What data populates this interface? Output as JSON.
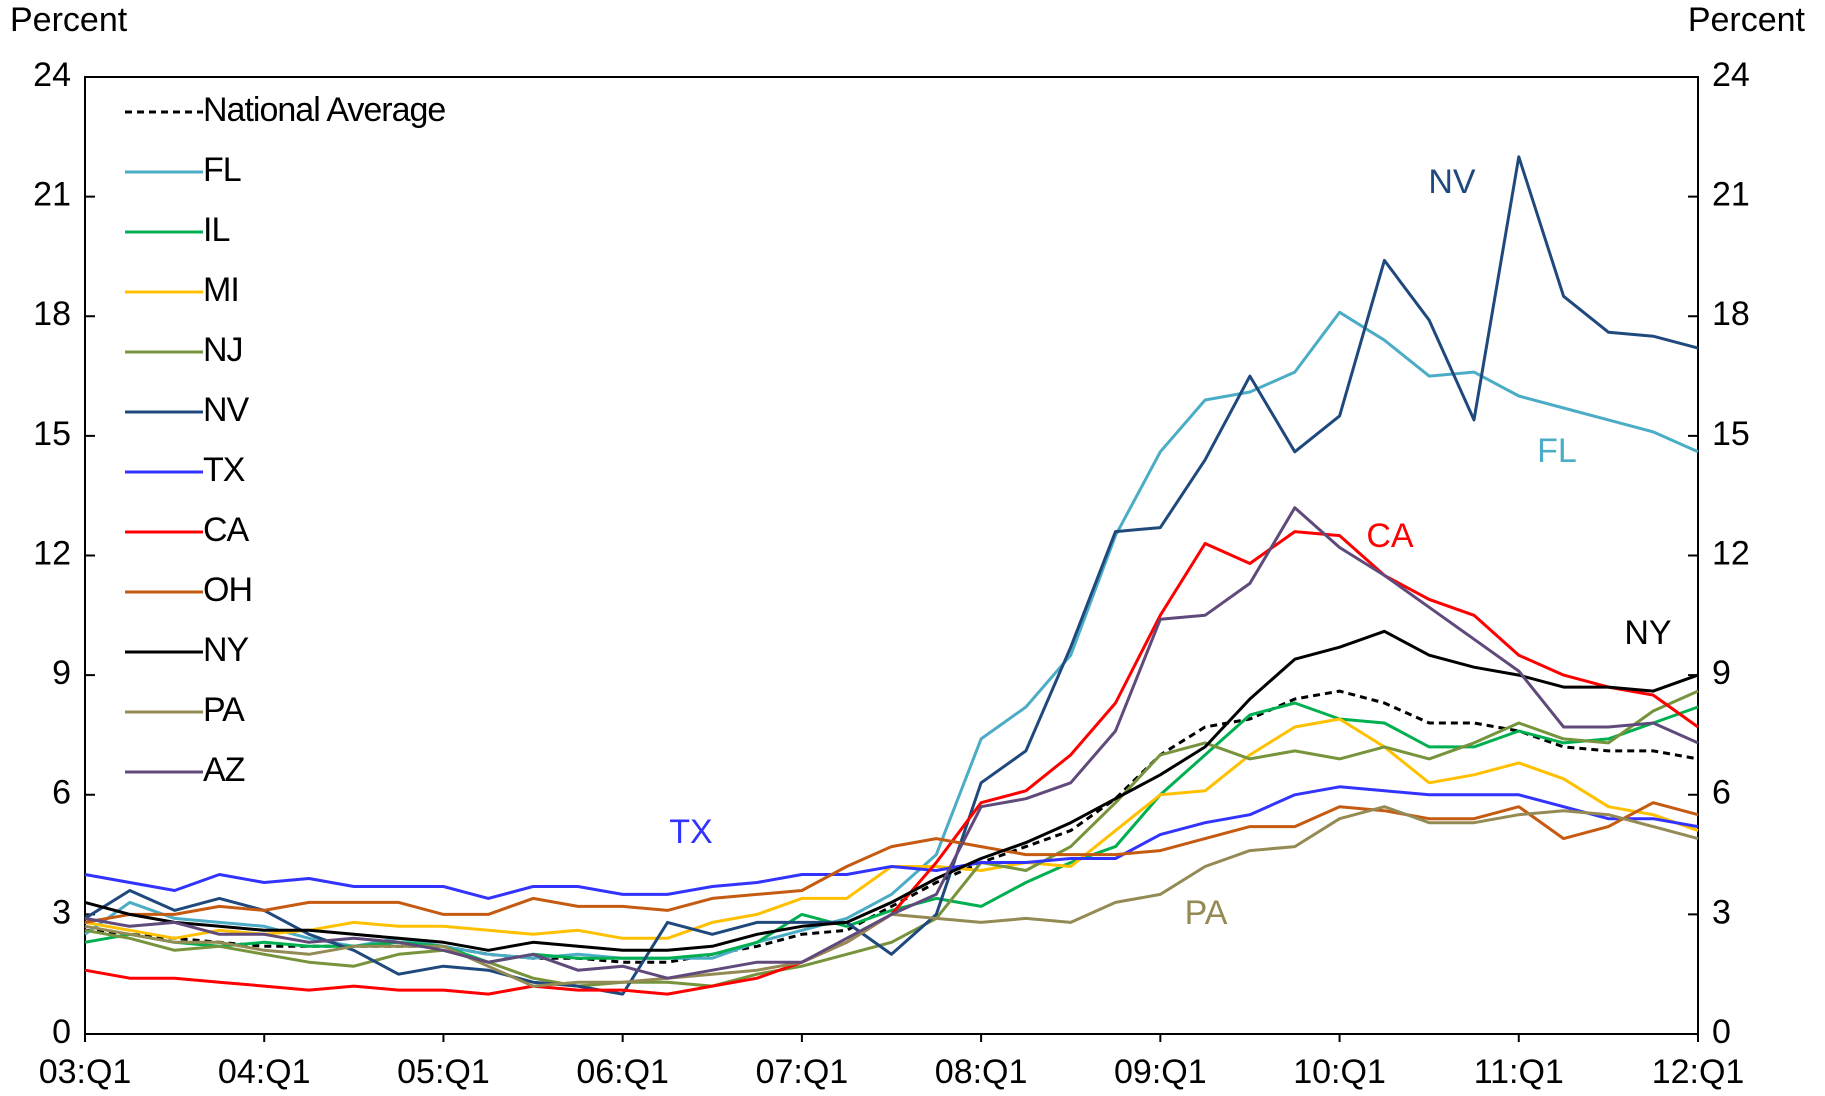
{
  "chart_data": {
    "type": "line",
    "y_label": "Percent",
    "y2_label": "Percent",
    "categories": [
      "03:Q1",
      null,
      null,
      null,
      "04:Q1",
      null,
      null,
      null,
      "05:Q1",
      null,
      null,
      null,
      "06:Q1",
      null,
      null,
      null,
      "07:Q1",
      null,
      null,
      null,
      "08:Q1",
      null,
      null,
      null,
      "09:Q1",
      null,
      null,
      null,
      "10:Q1",
      null,
      null,
      null,
      "11:Q1",
      null,
      null,
      null,
      "12:Q1"
    ],
    "ylim": [
      0,
      24
    ],
    "yticks": [
      0,
      3,
      6,
      9,
      12,
      15,
      18,
      21,
      24
    ],
    "y2lim": [
      0,
      24
    ],
    "y2ticks": [
      0,
      3,
      6,
      9,
      12,
      15,
      18,
      21,
      24
    ],
    "legend": "upper left",
    "series": [
      {
        "name": "National Average",
        "color": "#000000",
        "dashed": true,
        "values": [
          2.6,
          2.5,
          2.4,
          2.3,
          2.2,
          2.2,
          2.2,
          2.2,
          2.2,
          2.0,
          1.9,
          1.9,
          1.8,
          1.8,
          2.0,
          2.2,
          2.5,
          2.6,
          3.2,
          3.8,
          4.3,
          4.7,
          5.1,
          5.9,
          7.0,
          7.7,
          7.9,
          8.4,
          8.6,
          8.3,
          7.8,
          7.8,
          7.6,
          7.2,
          7.1,
          7.1,
          6.9
        ]
      },
      {
        "name": "FL",
        "color": "#4bacc6",
        "values": [
          2.5,
          3.3,
          2.9,
          2.8,
          2.7,
          2.4,
          2.2,
          2.4,
          2.2,
          2.0,
          1.9,
          2.0,
          1.9,
          1.9,
          1.9,
          2.3,
          2.6,
          2.9,
          3.5,
          4.5,
          7.4,
          8.2,
          9.5,
          12.5,
          14.6,
          15.9,
          16.1,
          16.6,
          18.1,
          17.4,
          16.5,
          16.6,
          16.0,
          15.7,
          15.4,
          15.1,
          14.6
        ]
      },
      {
        "name": "IL",
        "color": "#00b050",
        "values": [
          2.3,
          2.5,
          2.3,
          2.2,
          2.3,
          2.2,
          2.2,
          2.3,
          2.2,
          1.8,
          2.0,
          1.9,
          1.9,
          1.9,
          2.0,
          2.3,
          3.0,
          2.7,
          3.1,
          3.4,
          3.2,
          3.8,
          4.3,
          4.7,
          6.0,
          7.0,
          8.0,
          8.3,
          7.9,
          7.8,
          7.2,
          7.2,
          7.6,
          7.3,
          7.4,
          7.8,
          8.2
        ]
      },
      {
        "name": "MI",
        "color": "#ffc000",
        "values": [
          2.8,
          2.6,
          2.4,
          2.6,
          2.5,
          2.6,
          2.8,
          2.7,
          2.7,
          2.6,
          2.5,
          2.6,
          2.4,
          2.4,
          2.8,
          3.0,
          3.4,
          3.4,
          4.2,
          4.2,
          4.1,
          4.3,
          4.2,
          5.1,
          6.0,
          6.1,
          7.0,
          7.7,
          7.9,
          7.2,
          6.3,
          6.5,
          6.8,
          6.4,
          5.7,
          5.5,
          5.1
        ]
      },
      {
        "name": "NJ",
        "color": "#77933c",
        "values": [
          2.6,
          2.4,
          2.1,
          2.2,
          2.0,
          1.8,
          1.7,
          2.0,
          2.1,
          1.8,
          1.4,
          1.2,
          1.3,
          1.3,
          1.2,
          1.5,
          1.7,
          2.0,
          2.3,
          2.9,
          4.3,
          4.1,
          4.7,
          5.8,
          7.0,
          7.3,
          6.9,
          7.1,
          6.9,
          7.2,
          6.9,
          7.3,
          7.8,
          7.4,
          7.3,
          8.1,
          8.6
        ]
      },
      {
        "name": "NV",
        "color": "#1f497d",
        "values": [
          2.9,
          3.6,
          3.1,
          3.4,
          3.1,
          2.5,
          2.1,
          1.5,
          1.7,
          1.6,
          1.3,
          1.2,
          1.0,
          2.8,
          2.5,
          2.8,
          2.8,
          2.8,
          2.0,
          3.0,
          6.3,
          7.1,
          9.7,
          12.6,
          12.7,
          14.4,
          16.5,
          14.6,
          15.5,
          19.4,
          17.9,
          15.4,
          22.0,
          18.5,
          17.6,
          17.5,
          17.2
        ]
      },
      {
        "name": "TX",
        "color": "#3333ff",
        "values": [
          4.0,
          3.8,
          3.6,
          4.0,
          3.8,
          3.9,
          3.7,
          3.7,
          3.7,
          3.4,
          3.7,
          3.7,
          3.5,
          3.5,
          3.7,
          3.8,
          4.0,
          4.0,
          4.2,
          4.1,
          4.3,
          4.3,
          4.4,
          4.4,
          5.0,
          5.3,
          5.5,
          6.0,
          6.2,
          6.1,
          6.0,
          6.0,
          6.0,
          5.7,
          5.4,
          5.4,
          5.2
        ]
      },
      {
        "name": "CA",
        "color": "#ff0000",
        "values": [
          1.6,
          1.4,
          1.4,
          1.3,
          1.2,
          1.1,
          1.2,
          1.1,
          1.1,
          1.0,
          1.2,
          1.1,
          1.1,
          1.0,
          1.2,
          1.4,
          1.8,
          2.3,
          3.0,
          4.3,
          5.8,
          6.1,
          7.0,
          8.3,
          10.5,
          12.3,
          11.8,
          12.6,
          12.5,
          11.5,
          10.9,
          10.5,
          9.5,
          9.0,
          8.7,
          8.5,
          7.7
        ]
      },
      {
        "name": "OH",
        "color": "#c55a11",
        "values": [
          2.8,
          3.0,
          3.0,
          3.2,
          3.1,
          3.3,
          3.3,
          3.3,
          3.0,
          3.0,
          3.4,
          3.2,
          3.2,
          3.1,
          3.4,
          3.5,
          3.6,
          4.2,
          4.7,
          4.9,
          4.7,
          4.5,
          4.5,
          4.5,
          4.6,
          4.9,
          5.2,
          5.2,
          5.7,
          5.6,
          5.4,
          5.4,
          5.7,
          4.9,
          5.2,
          5.8,
          5.5
        ]
      },
      {
        "name": "NY",
        "color": "#000000",
        "values": [
          3.3,
          3.0,
          2.8,
          2.7,
          2.6,
          2.6,
          2.5,
          2.4,
          2.3,
          2.1,
          2.3,
          2.2,
          2.1,
          2.1,
          2.2,
          2.5,
          2.7,
          2.8,
          3.3,
          3.9,
          4.4,
          4.8,
          5.3,
          5.9,
          6.5,
          7.2,
          8.4,
          9.4,
          9.7,
          10.1,
          9.5,
          9.2,
          9.0,
          8.7,
          8.7,
          8.6,
          9.0
        ]
      },
      {
        "name": "PA",
        "color": "#948a54",
        "values": [
          2.7,
          2.5,
          2.3,
          2.3,
          2.1,
          2.0,
          2.2,
          2.2,
          2.2,
          1.7,
          1.2,
          1.3,
          1.3,
          1.4,
          1.5,
          1.6,
          1.8,
          2.3,
          3.0,
          2.9,
          2.8,
          2.9,
          2.8,
          3.3,
          3.5,
          4.2,
          4.6,
          4.7,
          5.4,
          5.7,
          5.3,
          5.3,
          5.5,
          5.6,
          5.5,
          5.2,
          4.9
        ]
      },
      {
        "name": "AZ",
        "color": "#604a7b",
        "values": [
          2.9,
          2.7,
          2.8,
          2.5,
          2.5,
          2.3,
          2.4,
          2.3,
          2.1,
          1.8,
          2.0,
          1.6,
          1.7,
          1.4,
          1.6,
          1.8,
          1.8,
          2.4,
          3.0,
          3.5,
          5.7,
          5.9,
          6.3,
          7.6,
          10.4,
          10.5,
          11.3,
          13.2,
          12.2,
          11.5,
          10.7,
          9.9,
          9.1,
          7.7,
          7.7,
          7.8,
          7.3
        ]
      }
    ],
    "annotations": [
      {
        "text": "NV",
        "color": "#1f497d"
      },
      {
        "text": "FL",
        "color": "#4bacc6"
      },
      {
        "text": "CA",
        "color": "#ff0000"
      },
      {
        "text": "NY",
        "color": "#000000"
      },
      {
        "text": "TX",
        "color": "#3333ff"
      },
      {
        "text": "PA",
        "color": "#948a54"
      }
    ]
  }
}
